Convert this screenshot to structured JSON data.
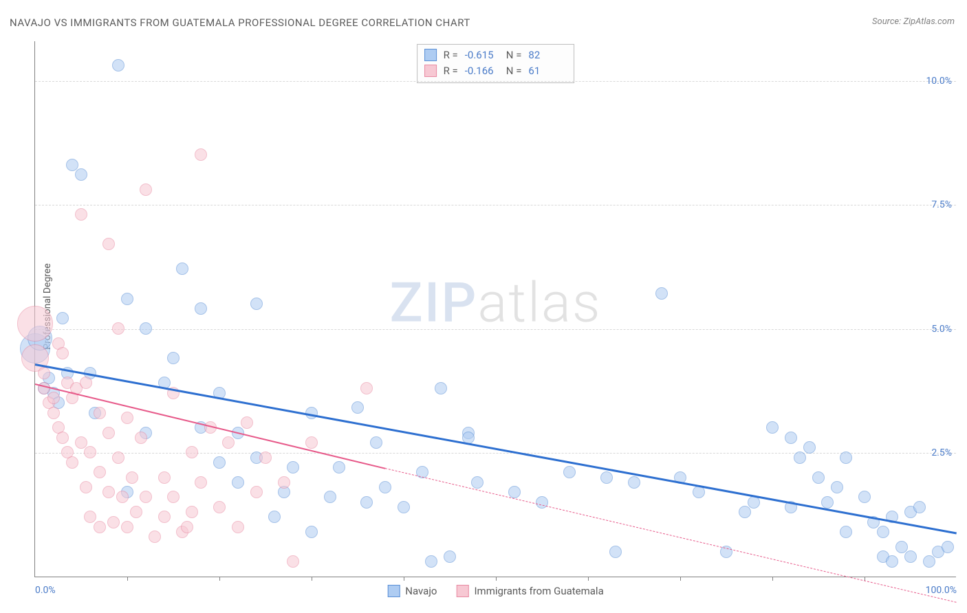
{
  "title": "NAVAJO VS IMMIGRANTS FROM GUATEMALA PROFESSIONAL DEGREE CORRELATION CHART",
  "source_label": "Source: ",
  "source_name": "ZipAtlas.com",
  "ylabel": "Professional Degree",
  "watermark_zip": "ZIP",
  "watermark_atlas": "atlas",
  "chart": {
    "type": "scatter",
    "xlim": [
      0,
      100
    ],
    "ylim": [
      0,
      10.8
    ],
    "background_color": "#ffffff",
    "grid_color": "#d8d8d8",
    "axis_color": "#808080",
    "tick_label_color": "#4a7bc8",
    "yticks": [
      {
        "v": 2.5,
        "label": "2.5%"
      },
      {
        "v": 5.0,
        "label": "5.0%"
      },
      {
        "v": 7.5,
        "label": "7.5%"
      },
      {
        "v": 10.0,
        "label": "10.0%"
      }
    ],
    "xticks_minor": [
      10,
      20,
      30,
      40,
      50,
      60,
      70,
      80,
      90
    ],
    "xtick_labels": [
      {
        "v": 0,
        "label": "0.0%",
        "align": "left"
      },
      {
        "v": 100,
        "label": "100.0%",
        "align": "right"
      }
    ],
    "marker_radius": 9,
    "marker_opacity": 0.55,
    "series": [
      {
        "id": "navajo",
        "label": "Navajo",
        "fill": "#aeccf2",
        "stroke": "#5a8fd6",
        "r_value": "-0.615",
        "n_value": "82",
        "trend": {
          "x1": 0,
          "y1": 4.3,
          "x2": 100,
          "y2": 0.9,
          "color": "#2d6fd0",
          "width": 3,
          "style": "solid"
        },
        "points": [
          [
            0,
            4.6,
            22
          ],
          [
            0.5,
            4.8,
            18
          ],
          [
            1,
            3.8
          ],
          [
            1.5,
            4.0
          ],
          [
            2,
            3.7
          ],
          [
            2.5,
            3.5
          ],
          [
            3,
            5.2
          ],
          [
            3.5,
            4.1
          ],
          [
            4,
            8.3
          ],
          [
            5,
            8.1
          ],
          [
            6,
            4.1
          ],
          [
            6.5,
            3.3
          ],
          [
            9,
            10.3
          ],
          [
            10,
            5.6
          ],
          [
            10,
            1.7
          ],
          [
            12,
            5.0
          ],
          [
            12,
            2.9
          ],
          [
            14,
            3.9
          ],
          [
            15,
            4.4
          ],
          [
            16,
            6.2
          ],
          [
            18,
            5.4
          ],
          [
            18,
            3.0
          ],
          [
            20,
            3.7
          ],
          [
            20,
            2.3
          ],
          [
            22,
            2.9
          ],
          [
            22,
            1.9
          ],
          [
            24,
            5.5
          ],
          [
            24,
            2.4
          ],
          [
            26,
            1.2
          ],
          [
            27,
            1.7
          ],
          [
            28,
            2.2
          ],
          [
            30,
            3.3
          ],
          [
            30,
            0.9
          ],
          [
            32,
            1.6
          ],
          [
            33,
            2.2
          ],
          [
            35,
            3.4
          ],
          [
            36,
            1.5
          ],
          [
            37,
            2.7
          ],
          [
            38,
            1.8
          ],
          [
            40,
            1.4
          ],
          [
            42,
            2.1
          ],
          [
            43,
            0.3
          ],
          [
            44,
            3.8
          ],
          [
            45,
            0.4
          ],
          [
            47,
            2.9
          ],
          [
            47,
            2.8
          ],
          [
            48,
            1.9
          ],
          [
            52,
            1.7
          ],
          [
            55,
            1.5
          ],
          [
            58,
            2.1
          ],
          [
            62,
            2.0
          ],
          [
            63,
            0.5
          ],
          [
            65,
            1.9
          ],
          [
            68,
            5.7
          ],
          [
            70,
            2.0
          ],
          [
            72,
            1.7
          ],
          [
            75,
            0.5
          ],
          [
            77,
            1.3
          ],
          [
            78,
            1.5
          ],
          [
            80,
            3.0
          ],
          [
            82,
            2.8
          ],
          [
            82,
            1.4
          ],
          [
            83,
            2.4
          ],
          [
            84,
            2.6
          ],
          [
            85,
            2.0
          ],
          [
            86,
            1.5
          ],
          [
            87,
            1.8
          ],
          [
            88,
            2.4
          ],
          [
            88,
            0.9
          ],
          [
            90,
            1.6
          ],
          [
            91,
            1.1
          ],
          [
            92,
            0.9
          ],
          [
            92,
            0.4
          ],
          [
            93,
            1.2
          ],
          [
            93,
            0.3
          ],
          [
            94,
            0.6
          ],
          [
            95,
            1.3
          ],
          [
            95,
            0.4
          ],
          [
            96,
            1.4
          ],
          [
            97,
            0.3
          ],
          [
            98,
            0.5
          ],
          [
            99,
            0.6
          ]
        ]
      },
      {
        "id": "guatemala",
        "label": "Immigrants from Guatemala",
        "fill": "#f7c8d3",
        "stroke": "#e88aa2",
        "r_value": "-0.166",
        "n_value": "61",
        "trend": {
          "x1": 0,
          "y1": 3.9,
          "x2": 38,
          "y2": 2.2,
          "color": "#e75a8a",
          "width": 2.5,
          "style": "solid",
          "ext_x2": 100,
          "ext_y2": -0.5,
          "ext_style": "dashed"
        },
        "points": [
          [
            0,
            4.4,
            20
          ],
          [
            0,
            5.1,
            26
          ],
          [
            1,
            4.1
          ],
          [
            1,
            3.8
          ],
          [
            1.5,
            3.5
          ],
          [
            2,
            3.6
          ],
          [
            2,
            3.3
          ],
          [
            2.5,
            4.7
          ],
          [
            2.5,
            3.0
          ],
          [
            3,
            4.5
          ],
          [
            3,
            2.8
          ],
          [
            3.5,
            3.9
          ],
          [
            3.5,
            2.5
          ],
          [
            4,
            3.6
          ],
          [
            4,
            2.3
          ],
          [
            4.5,
            3.8
          ],
          [
            5,
            7.3
          ],
          [
            5,
            2.7
          ],
          [
            5.5,
            3.9
          ],
          [
            5.5,
            1.8
          ],
          [
            6,
            2.5
          ],
          [
            6,
            1.2
          ],
          [
            7,
            3.3
          ],
          [
            7,
            2.1
          ],
          [
            7,
            1.0
          ],
          [
            8,
            6.7
          ],
          [
            8,
            2.9
          ],
          [
            8,
            1.7
          ],
          [
            8.5,
            1.1
          ],
          [
            9,
            5.0
          ],
          [
            9,
            2.4
          ],
          [
            9.5,
            1.6
          ],
          [
            10,
            3.2
          ],
          [
            10,
            1.0
          ],
          [
            10.5,
            2.0
          ],
          [
            11,
            1.3
          ],
          [
            11.5,
            2.8
          ],
          [
            12,
            7.8
          ],
          [
            12,
            1.6
          ],
          [
            13,
            0.8
          ],
          [
            14,
            2.0
          ],
          [
            14,
            1.2
          ],
          [
            15,
            3.7
          ],
          [
            15,
            1.6
          ],
          [
            16,
            0.9
          ],
          [
            16.5,
            1.0
          ],
          [
            17,
            2.5
          ],
          [
            17,
            1.3
          ],
          [
            18,
            8.5
          ],
          [
            18,
            1.9
          ],
          [
            19,
            3.0
          ],
          [
            20,
            1.4
          ],
          [
            21,
            2.7
          ],
          [
            22,
            1.0
          ],
          [
            23,
            3.1
          ],
          [
            24,
            1.7
          ],
          [
            25,
            2.4
          ],
          [
            27,
            1.9
          ],
          [
            28,
            0.3
          ],
          [
            30,
            2.7
          ],
          [
            36,
            3.8
          ]
        ]
      }
    ],
    "legend_stat_prefix_r": "R = ",
    "legend_stat_prefix_n": "N = "
  }
}
